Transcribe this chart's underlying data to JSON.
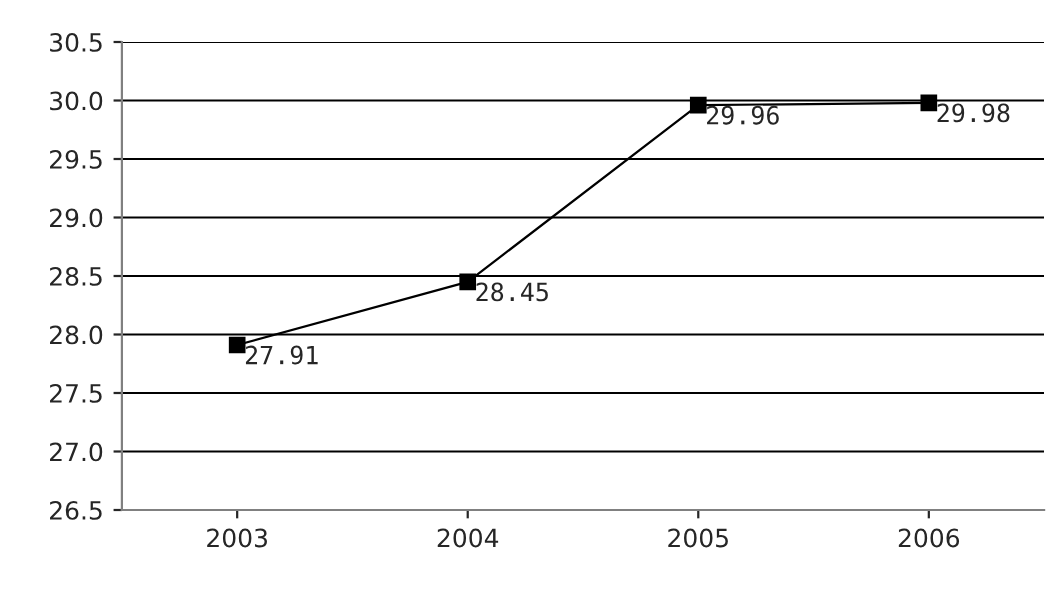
{
  "chart_data": {
    "type": "line",
    "categories": [
      "2003",
      "2004",
      "2005",
      "2006"
    ],
    "series": [
      {
        "color": "#000000",
        "values": [
          27.91,
          28.45,
          29.96,
          29.98
        ]
      }
    ],
    "ylim": [
      26.5,
      30.5
    ],
    "yticks": [
      26.5,
      {
        "value": 27,
        "label": "27.0"
      },
      27.5,
      {
        "value": 28,
        "label": "28.0"
      },
      28.5,
      {
        "value": 29,
        "label": "29.0"
      },
      29.5,
      {
        "value": 30,
        "label": "30.0"
      },
      30.5
    ],
    "grid": "y",
    "marker": "square",
    "line_style": "solid",
    "data_labels": true,
    "legend": false
  }
}
